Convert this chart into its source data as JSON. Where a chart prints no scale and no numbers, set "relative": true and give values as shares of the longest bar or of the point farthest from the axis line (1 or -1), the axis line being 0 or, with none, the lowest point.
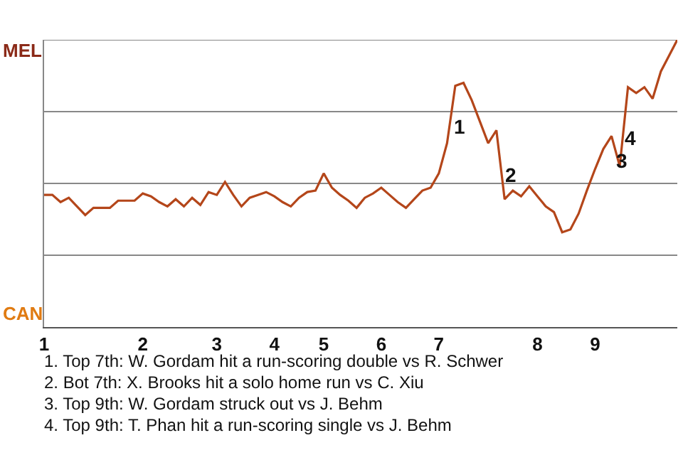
{
  "chart_data": {
    "type": "line",
    "relative": true,
    "categories": [
      "1",
      null,
      null,
      null,
      null,
      null,
      null,
      null,
      null,
      null,
      null,
      null,
      "2",
      null,
      null,
      null,
      null,
      null,
      null,
      null,
      null,
      "3",
      null,
      null,
      null,
      null,
      null,
      null,
      "4",
      null,
      null,
      null,
      null,
      null,
      "5",
      null,
      null,
      null,
      null,
      null,
      null,
      "6",
      null,
      null,
      null,
      null,
      null,
      null,
      "7",
      null,
      null,
      null,
      null,
      null,
      null,
      null,
      null,
      null,
      null,
      null,
      "8",
      null,
      null,
      null,
      null,
      null,
      null,
      "9",
      null,
      null,
      null,
      null,
      null,
      null,
      null,
      null,
      null,
      null
    ],
    "marker": "none",
    "line_style": "solid",
    "ref_lines": [
      {
        "axis": "y",
        "value": 1,
        "color": "#888888"
      },
      {
        "axis": "y",
        "value": 0.5,
        "color": "#888888"
      },
      {
        "axis": "y",
        "value": 0,
        "color": "#888888"
      },
      {
        "axis": "y",
        "value": -0.5,
        "color": "#888888"
      }
    ],
    "series": [
      {
        "color": "#b4461a",
        "values": [
          -0.08,
          -0.08,
          -0.13,
          -0.1,
          -0.16,
          -0.22,
          -0.17,
          -0.17,
          -0.17,
          -0.12,
          -0.12,
          -0.12,
          -0.07,
          -0.09,
          -0.13,
          -0.16,
          -0.11,
          -0.16,
          -0.1,
          -0.15,
          -0.06,
          -0.08,
          0.01,
          -0.08,
          -0.16,
          -0.1,
          -0.08,
          -0.06,
          -0.09,
          -0.13,
          -0.16,
          -0.1,
          -0.06,
          -0.05,
          0.07,
          -0.03,
          -0.08,
          -0.12,
          -0.17,
          -0.1,
          -0.07,
          -0.03,
          -0.08,
          -0.13,
          -0.17,
          -0.11,
          -0.05,
          -0.03,
          0.07,
          0.28,
          0.68,
          0.7,
          0.58,
          0.43,
          0.28,
          0.37,
          -0.11,
          -0.05,
          -0.09,
          -0.02,
          -0.09,
          -0.16,
          -0.2,
          -0.34,
          -0.32,
          -0.21,
          -0.05,
          0.1,
          0.24,
          0.33,
          0.12,
          0.67,
          0.63,
          0.67,
          0.59,
          0.78,
          0.89,
          1.0
        ]
      }
    ],
    "annotations": [
      "MEL",
      "CAN",
      "1",
      "2",
      "3",
      "4",
      "1. Top 7th: W. Gordam hit a run-scoring double vs R. Schwer",
      "2. Bot 7th: X. Brooks hit a solo home run vs C. Xiu",
      "3. Top 9th: W. Gordam struck out vs J. Behm",
      "4. Top 9th: T. Phan hit a run-scoring single vs J. Behm"
    ]
  }
}
